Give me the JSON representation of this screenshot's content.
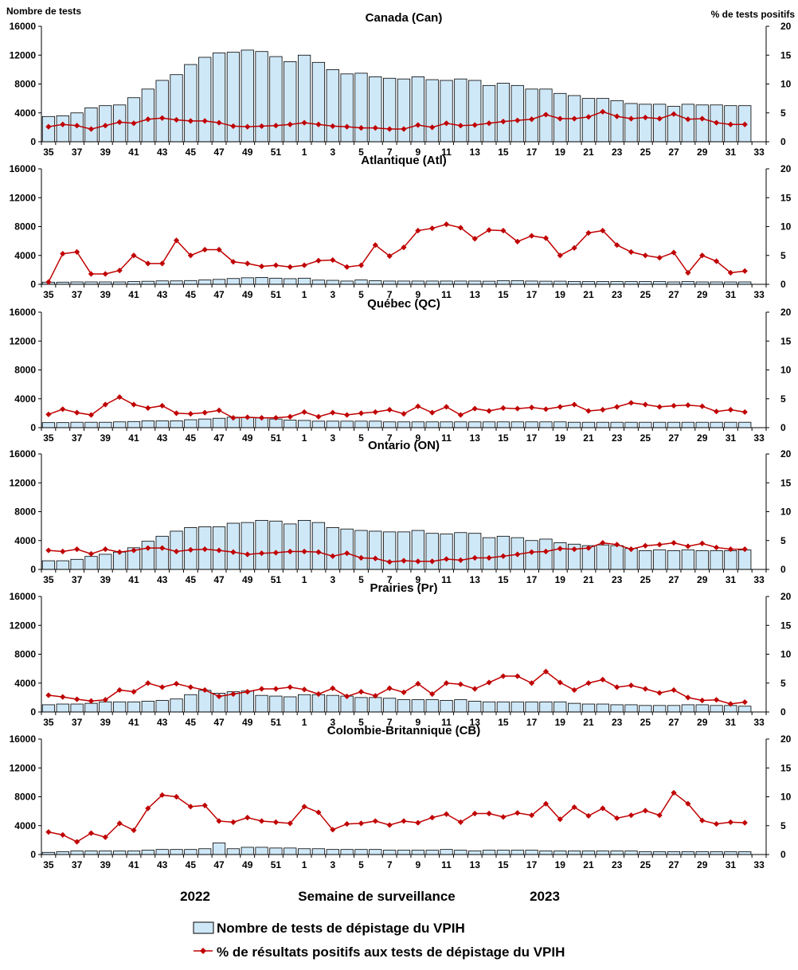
{
  "chart_data": {
    "type": "bar+line",
    "y_left_label": "Nombre de tests",
    "y_right_label": "% de tests positifs",
    "y_left_ticks": [
      "0",
      "4000",
      "8000",
      "12000",
      "16000"
    ],
    "y_right_ticks": [
      "0",
      "5",
      "10",
      "15",
      "20"
    ],
    "ylim_left": [
      0,
      16000
    ],
    "ylim_right": [
      0,
      20
    ],
    "x_tick_labels": [
      "35",
      "37",
      "39",
      "41",
      "43",
      "45",
      "47",
      "49",
      "51",
      "1",
      "3",
      "5",
      "7",
      "9",
      "11",
      "13",
      "15",
      "17",
      "19",
      "21",
      "23",
      "25",
      "27",
      "29",
      "31",
      "33"
    ],
    "weeks": [
      "35",
      "36",
      "37",
      "38",
      "39",
      "40",
      "41",
      "42",
      "43",
      "44",
      "45",
      "46",
      "47",
      "48",
      "49",
      "50",
      "51",
      "52",
      "1",
      "2",
      "3",
      "4",
      "5",
      "6",
      "7",
      "8",
      "9",
      "10",
      "11",
      "12",
      "13",
      "14",
      "15",
      "16",
      "17",
      "18",
      "19",
      "20",
      "21",
      "22",
      "23",
      "24",
      "25",
      "26",
      "27",
      "28",
      "29",
      "30",
      "31",
      "32"
    ],
    "xlabel": "Semaine de surveillance",
    "year_labels": [
      "2022",
      "2023"
    ],
    "legend": {
      "bars": "Nombre de tests de dépistage du VPIH",
      "line": "% de résultats positifs aux tests de dépistage du VPIH"
    },
    "colors": {
      "bar_fill": "#cfe8f8",
      "bar_stroke": "#000000",
      "line": "#c00000"
    },
    "panels": [
      {
        "title": "Canada (Can)",
        "tests": [
          3500,
          3600,
          4000,
          4700,
          5000,
          5100,
          6100,
          7300,
          8500,
          9300,
          10700,
          11700,
          12300,
          12400,
          12700,
          12500,
          11800,
          11100,
          12000,
          11000,
          10000,
          9400,
          9500,
          9000,
          8800,
          8700,
          9000,
          8600,
          8500,
          8700,
          8500,
          7800,
          8100,
          7800,
          7300,
          7300,
          6700,
          6400,
          6000,
          6000,
          5700,
          5300,
          5200,
          5200,
          4900,
          5200,
          5100,
          5100,
          5000,
          5000
        ],
        "pct": [
          2.6,
          3.0,
          2.8,
          2.2,
          2.8,
          3.4,
          3.2,
          3.9,
          4.1,
          3.8,
          3.6,
          3.6,
          3.3,
          2.7,
          2.6,
          2.7,
          2.8,
          3.0,
          3.3,
          3.0,
          2.7,
          2.6,
          2.4,
          2.4,
          2.2,
          2.2,
          2.9,
          2.5,
          3.2,
          2.8,
          2.9,
          3.2,
          3.5,
          3.7,
          3.9,
          4.7,
          4.0,
          4.0,
          4.3,
          5.2,
          4.4,
          4.0,
          4.2,
          4.0,
          4.8,
          3.9,
          4.0,
          3.3,
          3.0,
          3.0
        ]
      },
      {
        "title": "Atlantique (Atl)",
        "tests": [
          300,
          300,
          330,
          330,
          330,
          330,
          380,
          420,
          470,
          470,
          520,
          600,
          680,
          800,
          900,
          950,
          850,
          780,
          850,
          580,
          550,
          450,
          600,
          500,
          450,
          450,
          450,
          450,
          450,
          450,
          450,
          430,
          500,
          500,
          450,
          430,
          430,
          400,
          380,
          380,
          380,
          380,
          380,
          380,
          330,
          380,
          330,
          330,
          330,
          330
        ],
        "pct": [
          0.4,
          5.3,
          5.6,
          1.8,
          1.8,
          2.4,
          5.0,
          3.6,
          3.6,
          7.6,
          5.0,
          6.0,
          6.0,
          3.9,
          3.6,
          3.1,
          3.3,
          3.0,
          3.3,
          4.1,
          4.2,
          3.0,
          3.3,
          6.8,
          4.9,
          6.4,
          9.3,
          9.7,
          10.4,
          9.8,
          7.9,
          9.4,
          9.3,
          7.4,
          8.4,
          8.0,
          5.0,
          6.3,
          8.9,
          9.3,
          6.8,
          5.6,
          5.0,
          4.6,
          5.5,
          2.0,
          5.0,
          4.0,
          2.0,
          2.3
        ]
      },
      {
        "title": "Québec (QC)",
        "tests": [
          700,
          700,
          750,
          750,
          750,
          800,
          850,
          950,
          950,
          950,
          1100,
          1200,
          1300,
          1450,
          1450,
          1350,
          1200,
          1050,
          1000,
          900,
          900,
          900,
          900,
          900,
          800,
          800,
          800,
          800,
          800,
          800,
          800,
          800,
          800,
          800,
          800,
          800,
          800,
          750,
          750,
          750,
          750,
          750,
          750,
          750,
          750,
          750,
          750,
          750,
          750,
          750
        ],
        "pct": [
          2.3,
          3.2,
          2.6,
          2.2,
          4.0,
          5.3,
          4.0,
          3.4,
          3.8,
          2.5,
          2.4,
          2.6,
          3.0,
          1.7,
          1.8,
          1.7,
          1.7,
          1.9,
          2.7,
          1.9,
          2.6,
          2.2,
          2.5,
          2.7,
          3.1,
          2.4,
          3.7,
          2.6,
          3.6,
          2.2,
          3.3,
          2.9,
          3.4,
          3.3,
          3.5,
          3.2,
          3.6,
          4.0,
          2.9,
          3.1,
          3.6,
          4.3,
          4.0,
          3.6,
          3.8,
          3.9,
          3.7,
          2.8,
          3.1,
          2.7
        ]
      },
      {
        "title": "Ontario (ON)",
        "tests": [
          1200,
          1200,
          1400,
          1800,
          2100,
          2400,
          3000,
          3900,
          4600,
          5300,
          5800,
          5900,
          5900,
          6400,
          6500,
          6800,
          6700,
          6300,
          6800,
          6500,
          5800,
          5600,
          5400,
          5300,
          5200,
          5200,
          5400,
          5000,
          4900,
          5100,
          5000,
          4400,
          4600,
          4400,
          4000,
          4200,
          3700,
          3500,
          3300,
          3400,
          3300,
          2900,
          2600,
          2700,
          2600,
          2700,
          2600,
          2600,
          2600,
          2700
        ],
        "pct": [
          3.3,
          3.1,
          3.5,
          2.7,
          3.5,
          3.0,
          3.3,
          3.7,
          3.7,
          3.1,
          3.4,
          3.5,
          3.3,
          3.0,
          2.6,
          2.8,
          2.9,
          3.1,
          3.1,
          3.0,
          2.3,
          2.8,
          2.0,
          1.9,
          1.3,
          1.5,
          1.4,
          1.4,
          1.8,
          1.6,
          2.0,
          2.0,
          2.3,
          2.6,
          3.0,
          3.1,
          3.6,
          3.5,
          3.7,
          4.6,
          4.3,
          3.5,
          4.1,
          4.3,
          4.6,
          4.0,
          4.5,
          3.8,
          3.5,
          3.5
        ]
      },
      {
        "title": "Prairies (Pr)",
        "tests": [
          1000,
          1100,
          1100,
          1200,
          1400,
          1400,
          1400,
          1500,
          1600,
          1800,
          2400,
          3000,
          2600,
          2800,
          2900,
          2300,
          2200,
          2100,
          2400,
          2400,
          2300,
          2200,
          2000,
          2000,
          1900,
          1700,
          1700,
          1700,
          1600,
          1700,
          1500,
          1400,
          1400,
          1400,
          1400,
          1400,
          1400,
          1200,
          1100,
          1100,
          1000,
          1000,
          900,
          900,
          900,
          1000,
          1000,
          900,
          900,
          800
        ],
        "pct": [
          2.9,
          2.6,
          2.2,
          1.9,
          2.1,
          3.8,
          3.5,
          5.0,
          4.3,
          4.9,
          4.3,
          3.8,
          2.7,
          3.1,
          3.5,
          4.0,
          4.0,
          4.3,
          3.9,
          3.1,
          4.1,
          2.7,
          3.5,
          2.8,
          4.1,
          3.4,
          4.9,
          3.1,
          5.0,
          4.8,
          4.0,
          5.1,
          6.2,
          6.2,
          5.0,
          7.0,
          5.1,
          3.8,
          5.0,
          5.6,
          4.3,
          4.6,
          4.0,
          3.3,
          3.8,
          2.5,
          2.0,
          2.1,
          1.4,
          1.7
        ]
      },
      {
        "title": "Colombie-Britannique (CB)",
        "tests": [
          300,
          400,
          500,
          500,
          500,
          500,
          500,
          600,
          700,
          700,
          700,
          800,
          1600,
          800,
          1000,
          1000,
          900,
          900,
          800,
          800,
          700,
          700,
          700,
          700,
          600,
          600,
          600,
          600,
          700,
          600,
          500,
          600,
          600,
          600,
          600,
          500,
          500,
          500,
          500,
          500,
          500,
          500,
          400,
          400,
          400,
          400,
          400,
          400,
          400,
          400
        ],
        "pct": [
          3.9,
          3.4,
          2.2,
          3.7,
          3.0,
          5.4,
          4.2,
          8.0,
          10.3,
          10.0,
          8.3,
          8.5,
          5.8,
          5.6,
          6.4,
          5.8,
          5.6,
          5.4,
          8.3,
          7.3,
          4.3,
          5.3,
          5.4,
          5.8,
          5.1,
          5.8,
          5.5,
          6.4,
          7.0,
          5.6,
          7.1,
          7.1,
          6.5,
          7.2,
          6.8,
          8.8,
          6.1,
          8.2,
          6.7,
          8.0,
          6.3,
          6.8,
          7.6,
          6.8,
          10.7,
          8.8,
          5.9,
          5.3,
          5.6,
          5.5
        ]
      }
    ]
  }
}
